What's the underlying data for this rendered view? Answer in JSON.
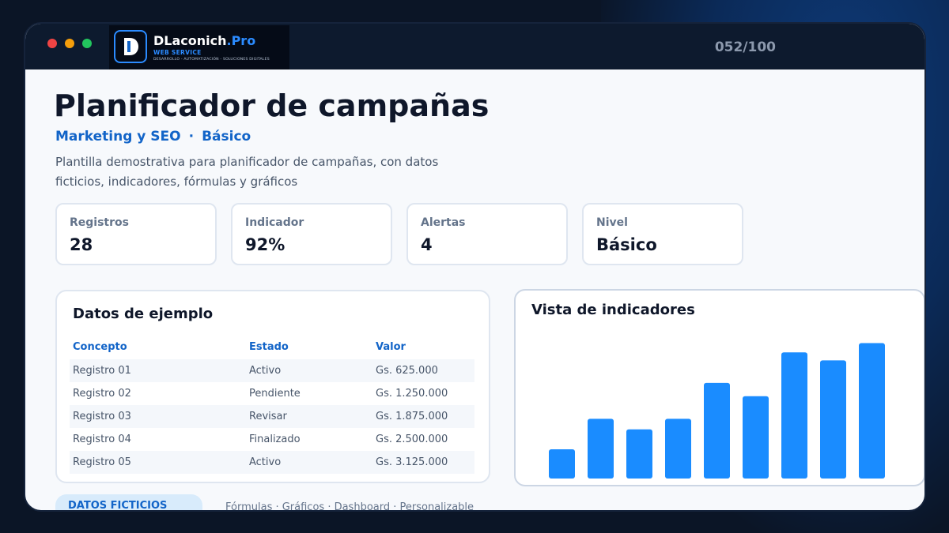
{
  "window": {
    "brand": {
      "name": "DLaconich",
      "name_accent": ".Pro",
      "subtitle": "WEB SERVICE",
      "tagline": "DESARROLLO - AUTOMATIZACIÓN - SOLUCIONES DIGITALES"
    },
    "counter": "052/100"
  },
  "header": {
    "title": "Planificador de campañas",
    "category": "Marketing y SEO",
    "separator": "·",
    "level": "Básico",
    "description": "Plantilla demostrativa para planificador de campañas, con datos ficticios, indicadores, fórmulas y gráficos"
  },
  "stats": [
    {
      "label": "Registros",
      "value": "28"
    },
    {
      "label": "Indicador",
      "value": "92%"
    },
    {
      "label": "Alertas",
      "value": "4"
    },
    {
      "label": "Nivel",
      "value": "Básico"
    }
  ],
  "table": {
    "title": "Datos de ejemplo",
    "columns": [
      "Concepto",
      "Estado",
      "Valor"
    ],
    "rows": [
      [
        "Registro 01",
        "Activo",
        "Gs. 625.000"
      ],
      [
        "Registro 02",
        "Pendiente",
        "Gs. 1.250.000"
      ],
      [
        "Registro 03",
        "Revisar",
        "Gs. 1.875.000"
      ],
      [
        "Registro 04",
        "Finalizado",
        "Gs. 2.500.000"
      ],
      [
        "Registro 05",
        "Activo",
        "Gs. 3.125.000"
      ]
    ]
  },
  "chart_data": {
    "type": "bar",
    "title": "Vista de indicadores",
    "values": [
      22,
      45,
      37,
      45,
      72,
      62,
      95,
      89,
      102
    ],
    "ylim": [
      0,
      110
    ],
    "grid": false,
    "color": "#1a8cff"
  },
  "footer": {
    "badge": "DATOS FICTICIOS",
    "text": "Fórmulas · Gráficos · Dashboard · Personalizable"
  }
}
